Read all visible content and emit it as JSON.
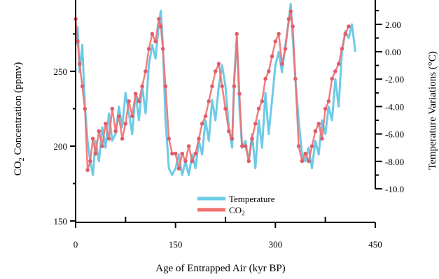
{
  "chart_data": {
    "type": "line",
    "title": "",
    "xlabel": "Age of Entrapped Air (kyr BP)",
    "ylabel_left": "CO2 Concentration (ppmv)",
    "ylabel_right": "Temperature Variations (°C)",
    "xlim": [
      0,
      450
    ],
    "ylim_left": [
      150,
      300
    ],
    "ylim_right": [
      -10.0,
      3.5
    ],
    "x_ticks": [
      "0",
      "150",
      "300",
      "450"
    ],
    "left_ticks": [
      "150",
      "200",
      "250"
    ],
    "right_ticks": [
      "2.00",
      "0.00",
      "-2.00",
      "-4.00",
      "-6.00",
      "-8.00",
      "-10.0"
    ],
    "legend_position": "bottom-center",
    "grid": false,
    "series": [
      {
        "name": "Temperature",
        "color": "#6ccbe6",
        "axis": "right",
        "x": [
          0,
          3,
          6,
          10,
          14,
          18,
          22,
          26,
          30,
          35,
          40,
          45,
          50,
          55,
          60,
          65,
          70,
          75,
          80,
          85,
          90,
          95,
          100,
          105,
          110,
          115,
          120,
          125,
          128,
          131,
          135,
          140,
          145,
          150,
          155,
          160,
          165,
          170,
          175,
          180,
          185,
          190,
          195,
          200,
          205,
          210,
          215,
          220,
          225,
          230,
          235,
          238,
          242,
          246,
          250,
          255,
          260,
          265,
          270,
          275,
          280,
          285,
          290,
          295,
          300,
          305,
          310,
          315,
          320,
          323,
          326,
          330,
          335,
          340,
          345,
          350,
          355,
          360,
          365,
          370,
          375,
          380,
          385,
          390,
          395,
          400,
          405,
          410,
          415,
          420
        ],
        "y": [
          0.5,
          1.8,
          -1.5,
          0.5,
          -4.0,
          -6.5,
          -8.0,
          -9.0,
          -6.5,
          -8.0,
          -5.5,
          -7.0,
          -4.5,
          -6.5,
          -6.0,
          -4.0,
          -5.5,
          -3.0,
          -4.5,
          -6.0,
          -3.0,
          -5.0,
          -2.5,
          -4.5,
          -1.0,
          0.5,
          -0.5,
          2.0,
          3.0,
          0.5,
          -5.0,
          -8.5,
          -9.0,
          -8.5,
          -7.5,
          -9.0,
          -8.0,
          -9.0,
          -7.5,
          -8.5,
          -6.5,
          -7.5,
          -5.0,
          -6.5,
          -3.5,
          -5.0,
          -2.5,
          -1.0,
          -2.5,
          -5.5,
          -7.0,
          -2.0,
          1.0,
          -4.0,
          -7.0,
          -6.5,
          -8.0,
          -6.0,
          -8.5,
          -5.0,
          -7.0,
          -3.0,
          -6.0,
          -3.5,
          -1.0,
          0.0,
          -1.5,
          0.5,
          2.2,
          3.5,
          1.0,
          -2.0,
          -5.0,
          -7.5,
          -8.0,
          -7.0,
          -8.5,
          -6.5,
          -7.5,
          -5.0,
          -6.0,
          -4.0,
          -5.0,
          -2.0,
          -4.0,
          0.0,
          1.5,
          1.0,
          2.0,
          0.0
        ]
      },
      {
        "name": "CO2",
        "color": "#f07070",
        "axis": "left",
        "x": [
          0,
          3,
          6,
          10,
          14,
          18,
          22,
          26,
          30,
          35,
          40,
          45,
          50,
          55,
          60,
          65,
          70,
          75,
          80,
          85,
          90,
          95,
          100,
          105,
          110,
          115,
          120,
          125,
          128,
          131,
          135,
          140,
          145,
          150,
          155,
          160,
          165,
          170,
          175,
          180,
          185,
          190,
          195,
          200,
          205,
          210,
          215,
          220,
          225,
          230,
          235,
          238,
          242,
          246,
          250,
          255,
          260,
          265,
          270,
          275,
          280,
          285,
          290,
          295,
          300,
          305,
          310,
          315,
          320,
          323,
          326,
          330,
          335,
          340,
          345,
          350,
          355,
          360,
          365,
          370,
          375,
          380,
          385,
          390,
          395,
          400,
          405,
          410
        ],
        "y": [
          285,
          270,
          255,
          240,
          225,
          184,
          190,
          205,
          195,
          210,
          200,
          215,
          205,
          225,
          210,
          220,
          205,
          215,
          230,
          220,
          235,
          230,
          240,
          250,
          265,
          275,
          270,
          285,
          280,
          265,
          240,
          205,
          195,
          195,
          185,
          195,
          190,
          200,
          190,
          195,
          205,
          215,
          220,
          230,
          240,
          250,
          255,
          240,
          225,
          210,
          205,
          240,
          275,
          235,
          200,
          200,
          190,
          205,
          215,
          225,
          230,
          245,
          250,
          260,
          270,
          275,
          255,
          265,
          285,
          290,
          280,
          245,
          200,
          190,
          195,
          190,
          200,
          210,
          215,
          205,
          225,
          230,
          245,
          250,
          255,
          265,
          275,
          280
        ]
      }
    ]
  },
  "legend": {
    "temperature_label": "Temperature",
    "co2_label": "CO",
    "co2_subscript": "2"
  },
  "axis_titles": {
    "x": "Age of Entrapped Air (kyr BP)",
    "left_main": "CO",
    "left_sub": "2",
    "left_rest": " Concentration (ppmv)",
    "right": "Temperature Variations (°C)"
  }
}
